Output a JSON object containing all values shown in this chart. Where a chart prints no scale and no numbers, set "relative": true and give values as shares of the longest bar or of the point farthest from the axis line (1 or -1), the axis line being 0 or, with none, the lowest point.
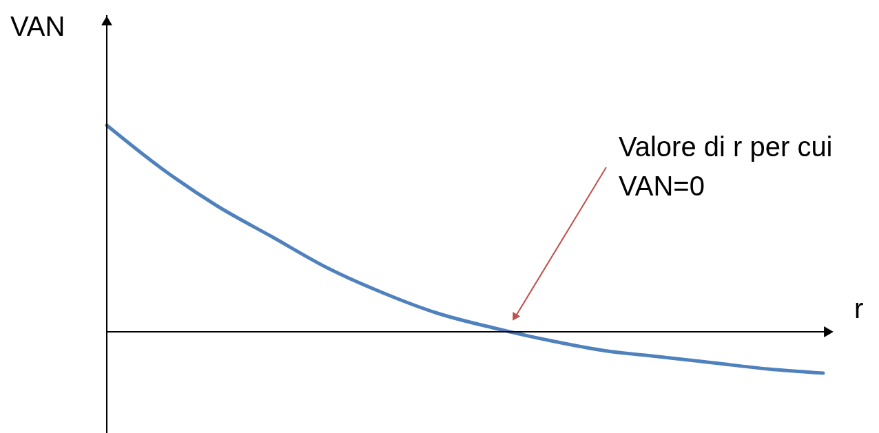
{
  "chart_data": {
    "type": "line",
    "relative": true,
    "xlabel": "r",
    "ylabel": "VAN",
    "categories": [
      null,
      null,
      null,
      null,
      null,
      null,
      null,
      null,
      null,
      null,
      null,
      null,
      null,
      null
    ],
    "series": [
      {
        "color": "#4f81bd",
        "values": [
          1.0,
          0.79,
          0.61,
          0.46,
          0.31,
          0.19,
          0.09,
          0.02,
          -0.04,
          -0.09,
          -0.12,
          -0.15,
          -0.18,
          -0.2
        ]
      }
    ],
    "annotations": [
      "Valore di r per cui\nVAN=0"
    ]
  }
}
